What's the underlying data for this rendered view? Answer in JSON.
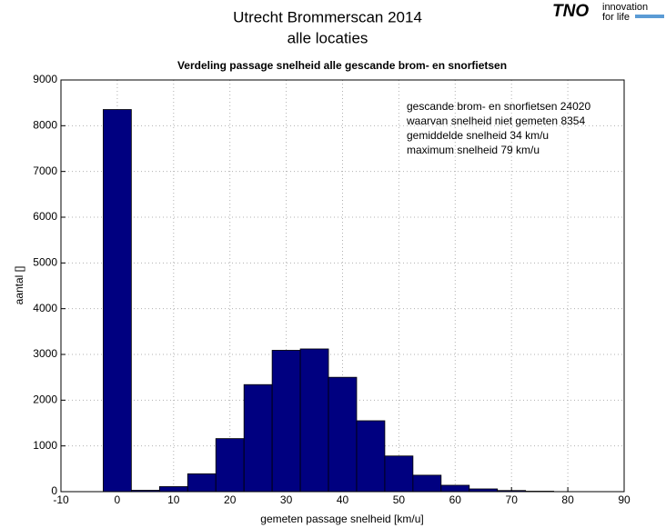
{
  "logo": {
    "name": "TNO",
    "tagline": [
      "innovation",
      "for life"
    ]
  },
  "chart_data": {
    "type": "histogram",
    "title": "Utrecht Brommerscan 2014",
    "title2": "alle locaties",
    "subtitle": "Verdeling passage snelheid alle gescande brom- en snorfietsen",
    "xlabel": "gemeten passage snelheid [km/u]",
    "ylabel": "aantal []",
    "annotations": [
      "gescande brom- en snorfietsen 24020",
      "waarvan snelheid niet gemeten 8354",
      "gemiddelde snelheid 34 km/u",
      "maximum snelheid 79 km/u"
    ],
    "bins": [
      -2.5,
      2.5,
      7.5,
      12.5,
      17.5,
      22.5,
      27.5,
      32.5,
      37.5,
      42.5,
      47.5,
      52.5,
      57.5,
      62.5,
      67.5,
      72.5,
      77.5,
      82.5
    ],
    "counts": [
      8354,
      30,
      110,
      390,
      1160,
      2340,
      3090,
      3120,
      2500,
      1550,
      780,
      360,
      140,
      60,
      25,
      10,
      1
    ],
    "color": "#000080",
    "xlim": [
      -10,
      90
    ],
    "xticks": [
      -10,
      0,
      10,
      20,
      30,
      40,
      50,
      60,
      70,
      80,
      90
    ],
    "ylim": [
      0,
      9000
    ],
    "yticks": [
      0,
      1000,
      2000,
      3000,
      4000,
      5000,
      6000,
      7000,
      8000,
      9000
    ],
    "grid": true
  }
}
